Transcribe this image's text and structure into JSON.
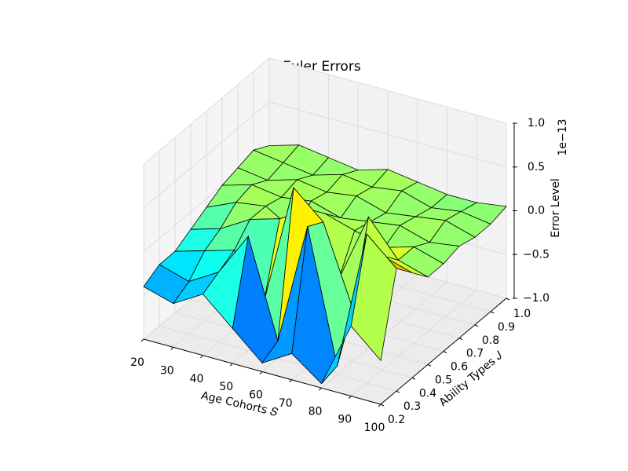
{
  "chart_data": {
    "type": "surface3d",
    "title": "Euler Errors",
    "xlabel": "Age Cohorts 𝑆",
    "ylabel": "Ability Types 𝐽",
    "zlabel": "Error Level",
    "z_offset_label": "1e−13",
    "colormap": "jet",
    "x": [
      20,
      30,
      40,
      50,
      60,
      70,
      80,
      90,
      100
    ],
    "y": [
      0.2,
      0.3,
      0.4,
      0.5,
      0.6,
      0.7,
      0.8,
      0.9,
      {
        "value": 1.0,
        "label": "1.0"
      }
    ],
    "z": [
      [
        -0.4,
        -0.5,
        -0.3,
        -0.6,
        -0.9,
        -0.7,
        -0.95,
        -0.2,
        -0.5
      ],
      [
        -0.3,
        -0.4,
        -0.2,
        0.3,
        -0.8,
        0.6,
        -0.9,
        0.7,
        0.4
      ],
      [
        -0.3,
        -0.2,
        -0.1,
        -0.6,
        0.8,
        0.5,
        -0.4,
        0.3,
        0.2
      ],
      [
        -0.2,
        -0.1,
        0.1,
        0.2,
        0.4,
        -0.3,
        0.5,
        0.1,
        0.0
      ],
      [
        -0.1,
        0.05,
        0.1,
        -0.1,
        0.2,
        0.1,
        0.0,
        0.1,
        0.0
      ],
      [
        0.0,
        0.1,
        0.05,
        0.1,
        0.0,
        0.05,
        0.1,
        0.0,
        0.05
      ],
      [
        0.05,
        0.0,
        0.1,
        0.05,
        0.1,
        0.0,
        0.05,
        0.1,
        0.0
      ],
      [
        0.1,
        0.05,
        0.0,
        0.1,
        0.05,
        0.1,
        0.0,
        0.05,
        0.0
      ],
      [
        0.0,
        0.1,
        0.05,
        0.0,
        0.1,
        0.05,
        0.0,
        0.0,
        0.05
      ]
    ],
    "xlim": [
      20,
      100
    ],
    "ylim": [
      0.2,
      1.0
    ],
    "zlim": [
      -1,
      1
    ],
    "xticks": [
      20,
      30,
      40,
      50,
      60,
      70,
      80,
      90,
      100
    ],
    "yticks": [
      0.2,
      0.3,
      0.4,
      0.5,
      0.6,
      0.7,
      0.8,
      0.9,
      {
        "value": 1.0,
        "label": "1.0"
      }
    ],
    "zticks": [
      {
        "value": -1,
        "label": "−1.0"
      },
      {
        "value": -0.5,
        "label": "−0.5"
      },
      {
        "value": 0,
        "label": "0.0"
      },
      0.5,
      {
        "value": 1,
        "label": "1.0"
      }
    ],
    "grid": true
  }
}
